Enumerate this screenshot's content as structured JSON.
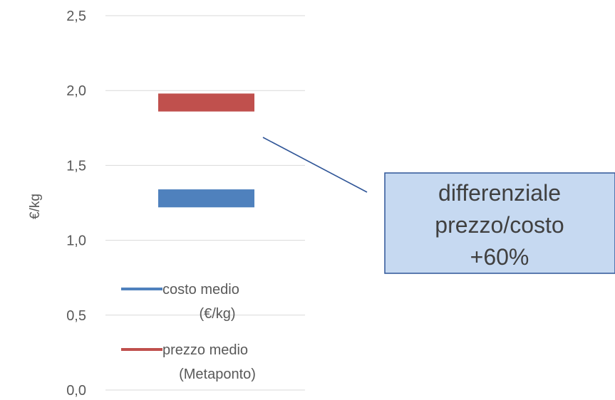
{
  "chart_data": {
    "type": "bar",
    "ylabel": "€/kg",
    "ylim": [
      0,
      2.5
    ],
    "yticks": [
      "0,0",
      "0,5",
      "1,0",
      "1,5",
      "2,0",
      "2,5"
    ],
    "grid": true,
    "legend_position": "bottom",
    "series": [
      {
        "name": "costo medio (€/kg)",
        "name_lines": [
          "costo medio",
          "(€/kg)"
        ],
        "color": "#4f81bd",
        "range": [
          1.22,
          1.34
        ]
      },
      {
        "name": "prezzo medio (Metaponto)",
        "name_lines": [
          "prezzo medio",
          "(Metaponto)"
        ],
        "color": "#c0504d",
        "range": [
          1.86,
          1.98
        ]
      }
    ],
    "annotation": {
      "lines": [
        "differenziale",
        "prezzo/costo",
        "+60%"
      ],
      "fill": "#c6d9f1",
      "border": "#2f5597"
    }
  }
}
